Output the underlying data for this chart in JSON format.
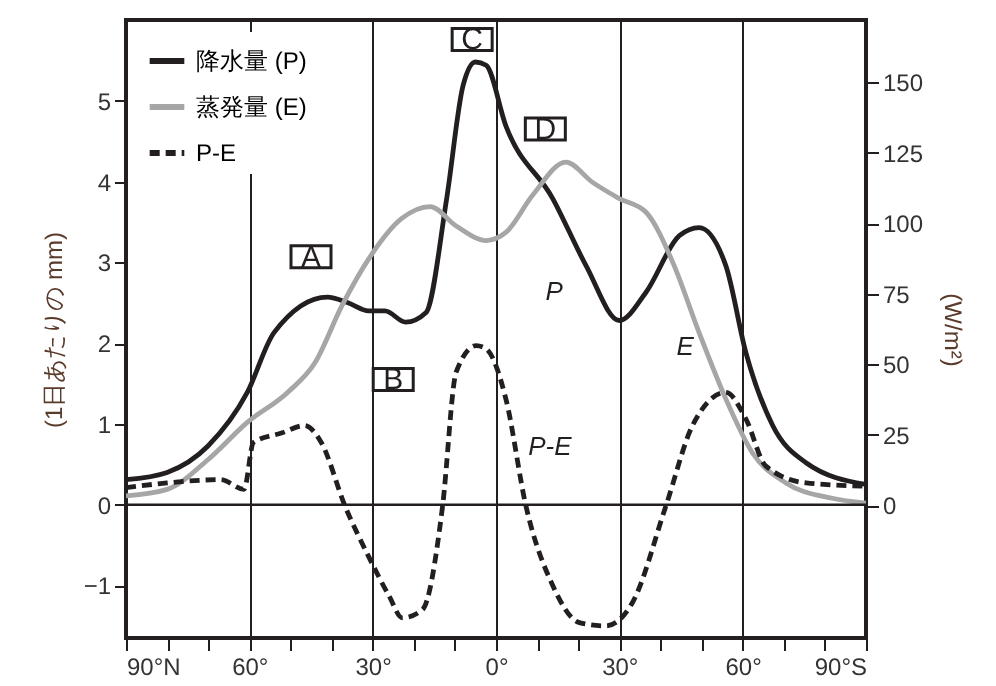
{
  "chart_data": {
    "type": "line",
    "ylabel": "(1日あたりの mm)",
    "y2label": "(W/m²)",
    "xlim": [
      90,
      -90
    ],
    "xticks": [
      {
        "value": 90,
        "label": "90°N"
      },
      {
        "value": 80,
        "label": null
      },
      {
        "value": 70,
        "label": null
      },
      {
        "value": 60,
        "label": "60°"
      },
      {
        "value": 50,
        "label": null
      },
      {
        "value": 40,
        "label": null
      },
      {
        "value": 30,
        "label": "30°"
      },
      {
        "value": 20,
        "label": null
      },
      {
        "value": 10,
        "label": null
      },
      {
        "value": 0,
        "label": "0°"
      },
      {
        "value": -10,
        "label": null
      },
      {
        "value": -20,
        "label": null
      },
      {
        "value": -30,
        "label": "30°"
      },
      {
        "value": -40,
        "label": null
      },
      {
        "value": -50,
        "label": null
      },
      {
        "value": -60,
        "label": "60°"
      },
      {
        "value": -70,
        "label": null
      },
      {
        "value": -80,
        "label": null
      },
      {
        "value": -90,
        "label": "90°S"
      }
    ],
    "ylim": [
      -1.65,
      6
    ],
    "yticks": [
      -1,
      0,
      1,
      2,
      3,
      4,
      5
    ],
    "y2lim": [
      -47,
      172
    ],
    "y2ticks": [
      0,
      25,
      50,
      75,
      100,
      125,
      150
    ],
    "grid": "x",
    "legend": "top left",
    "ref_lines": [
      {
        "axis": "y",
        "value": 0,
        "color": "#231f20"
      }
    ],
    "series": [
      {
        "name": "降水量 (P)",
        "color": "#231f20",
        "line_style": "solid",
        "x": [
          90,
          80,
          70,
          60.5,
          54,
          41,
          36,
          31,
          27,
          22,
          17,
          12,
          8,
          5,
          2.4,
          -2.4,
          -13.8,
          -21.9,
          -30,
          -36.5,
          -44.6,
          -49.4,
          -55.9,
          -60.8,
          -67.3,
          -75.4,
          -90
        ],
        "values": [
          0.31,
          0.4,
          0.73,
          1.39,
          2.13,
          2.57,
          2.5,
          2.4,
          2.4,
          2.26,
          2.38,
          3.79,
          5.19,
          5.48,
          5.44,
          4.69,
          3.79,
          2.96,
          2.28,
          2.63,
          3.33,
          3.43,
          2.96,
          1.88,
          0.98,
          0.52,
          0.25
        ]
      },
      {
        "name": "蒸発量 (E)",
        "color": "#a6a6a6",
        "line_style": "solid",
        "x": [
          90,
          80,
          70,
          60.5,
          50.7,
          44,
          37.5,
          31,
          23,
          16,
          9.7,
          2.4,
          -2.4,
          -8.9,
          -17,
          -23.5,
          -30,
          -36.5,
          -43,
          -49.4,
          -55.9,
          -62.4,
          -70.5,
          -81.8,
          -90
        ],
        "values": [
          0.11,
          0.19,
          0.56,
          1.02,
          1.39,
          1.76,
          2.46,
          3.04,
          3.54,
          3.69,
          3.45,
          3.27,
          3.37,
          3.83,
          4.24,
          3.99,
          3.79,
          3.62,
          3.0,
          2.13,
          1.31,
          0.64,
          0.27,
          0.08,
          0.02
        ]
      },
      {
        "name": "P-E",
        "color": "#231f20",
        "line_style": "dashed",
        "x": [
          90,
          80,
          67,
          61.3,
          59,
          52,
          46.6,
          42.5,
          36.7,
          31,
          26,
          22.8,
          17.9,
          13,
          9.7,
          4.8,
          2.4,
          -2.4,
          -7.3,
          -13.8,
          -20.3,
          -26.7,
          -33.2,
          -41.3,
          -47.8,
          -55.9,
          -60.8,
          -65.6,
          -75.4,
          -90
        ],
        "values": [
          0.21,
          0.27,
          0.31,
          0.19,
          0.77,
          0.89,
          0.98,
          0.77,
          -0.02,
          -0.64,
          -1.13,
          -1.4,
          -1.3,
          -0.02,
          1.64,
          1.97,
          1.93,
          1.31,
          -0.02,
          -1.0,
          -1.46,
          -1.5,
          -1.21,
          -0.02,
          0.98,
          1.39,
          1.06,
          0.48,
          0.27,
          0.23
        ]
      }
    ],
    "annotations": [
      {
        "text": "A",
        "x": 45,
        "y": 3.07
      },
      {
        "text": "B",
        "x": 25,
        "y": 1.55
      },
      {
        "text": "C",
        "x": 5.8,
        "y": 5.76
      },
      {
        "text": "D",
        "x": -12,
        "y": 4.65
      },
      {
        "text": "P",
        "x": -21.9,
        "y": 2.96
      },
      {
        "text": "E",
        "x": -49.4,
        "y": 2.13
      },
      {
        "text": "P-E",
        "x": -2.4,
        "y": 1.31
      }
    ]
  }
}
